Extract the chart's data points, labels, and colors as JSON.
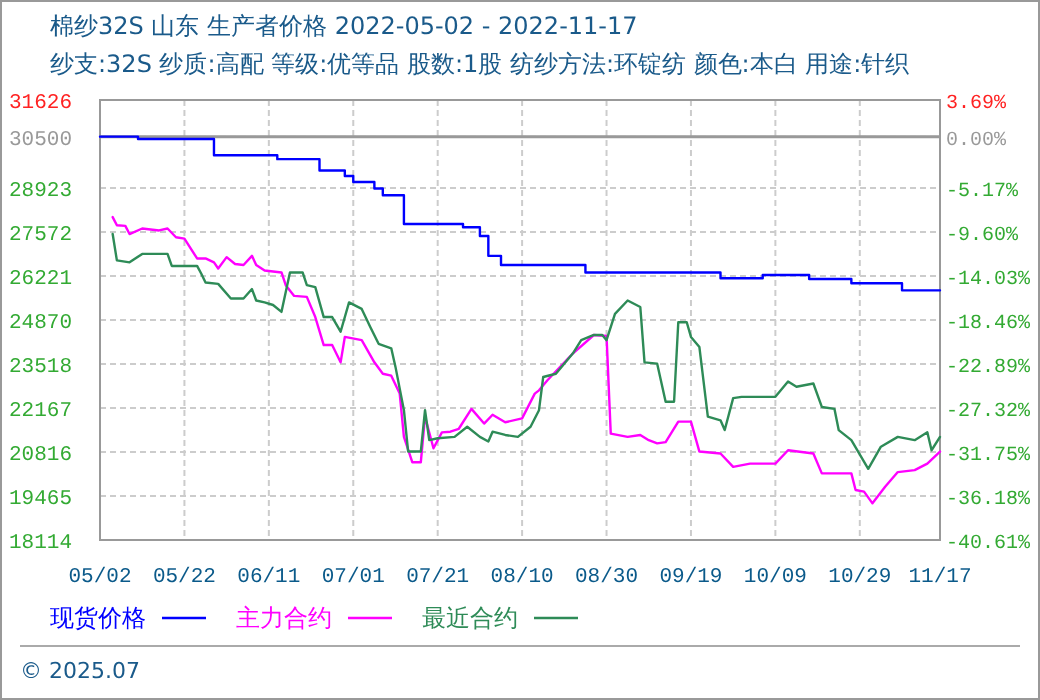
{
  "chart_data": {
    "type": "line",
    "title": "棉纱32S 山东 生产者价格 2022-05-02 - 2022-11-17",
    "subtitle": "纱支:32S 纱质:高配 等级:优等品 股数:1股 纺纱方法:环锭纺 颜色:本白 用途:针织",
    "xlim": [
      "2022-05-02",
      "2022-11-17"
    ],
    "xticks": [
      {
        "value": "2022-05-02",
        "label": "05/02"
      },
      {
        "value": "2022-05-22",
        "label": "05/22"
      },
      {
        "value": "2022-06-11",
        "label": "06/11"
      },
      {
        "value": "2022-07-01",
        "label": "07/01"
      },
      {
        "value": "2022-07-21",
        "label": "07/21"
      },
      {
        "value": "2022-08-10",
        "label": "08/10"
      },
      {
        "value": "2022-08-30",
        "label": "08/30"
      },
      {
        "value": "2022-09-19",
        "label": "09/19"
      },
      {
        "value": "2022-10-09",
        "label": "10/09"
      },
      {
        "value": "2022-10-29",
        "label": "10/29"
      },
      {
        "value": "2022-11-17",
        "label": "11/17"
      }
    ],
    "ylim": [
      18114,
      31626
    ],
    "yticks": [
      18114,
      19465,
      20816,
      22167,
      23518,
      24870,
      26221,
      27572,
      28923,
      30500,
      31626
    ],
    "y2lim": [
      -40.61,
      3.69
    ],
    "y2ticks": [
      {
        "value": -40.61,
        "label": "-40.61%"
      },
      {
        "value": -36.18,
        "label": "-36.18%"
      },
      {
        "value": -31.75,
        "label": "-31.75%"
      },
      {
        "value": -27.32,
        "label": "-27.32%"
      },
      {
        "value": -22.89,
        "label": "-22.89%"
      },
      {
        "value": -18.46,
        "label": "-18.46%"
      },
      {
        "value": -14.03,
        "label": "-14.03%"
      },
      {
        "value": -9.6,
        "label": "-9.60%"
      },
      {
        "value": -5.17,
        "label": "-5.17%"
      },
      {
        "value": 0,
        "label": "0.00%"
      },
      {
        "value": 3.69,
        "label": "3.69%"
      }
    ],
    "grid": true,
    "legend": "bottom",
    "ref_lines": [
      {
        "axis": "y",
        "value": 30500,
        "color": "#999999"
      }
    ],
    "annotations": [
      "© 2025.07"
    ],
    "series": [
      {
        "name": "现货价格",
        "type": "step",
        "color": "#0000ff",
        "x": [
          "2022-05-02",
          "2022-05-11",
          "2022-05-29",
          "2022-06-13",
          "2022-06-23",
          "2022-06-29",
          "2022-07-01",
          "2022-07-06",
          "2022-07-08",
          "2022-07-13",
          "2022-07-27",
          "2022-07-31",
          "2022-08-02",
          "2022-08-05",
          "2022-08-25",
          "2022-09-26",
          "2022-10-06",
          "2022-10-17",
          "2022-10-27",
          "2022-11-08",
          "2022-11-17"
        ],
        "values": [
          30500,
          30430,
          29930,
          29810,
          29460,
          29290,
          29110,
          28910,
          28700,
          27820,
          27720,
          27450,
          26840,
          26560,
          26330,
          26150,
          26250,
          26130,
          26000,
          25780,
          25780
        ]
      },
      {
        "name": "主力合约",
        "color": "#ff00ff",
        "x": [
          "2022-05-05",
          "2022-05-06",
          "2022-05-08",
          "2022-05-09",
          "2022-05-12",
          "2022-05-16",
          "2022-05-18",
          "2022-05-20",
          "2022-05-22",
          "2022-05-25",
          "2022-05-27",
          "2022-05-29",
          "2022-05-30",
          "2022-06-01",
          "2022-06-03",
          "2022-06-05",
          "2022-06-07",
          "2022-06-08",
          "2022-06-10",
          "2022-06-14",
          "2022-06-15",
          "2022-06-17",
          "2022-06-20",
          "2022-06-22",
          "2022-06-24",
          "2022-06-26",
          "2022-06-28",
          "2022-06-29",
          "2022-07-03",
          "2022-07-06",
          "2022-07-08",
          "2022-07-10",
          "2022-07-12",
          "2022-07-13",
          "2022-07-15",
          "2022-07-17",
          "2022-07-18",
          "2022-07-20",
          "2022-07-22",
          "2022-07-24",
          "2022-07-26",
          "2022-07-29",
          "2022-08-01",
          "2022-08-03",
          "2022-08-06",
          "2022-08-10",
          "2022-08-13",
          "2022-08-14",
          "2022-08-16",
          "2022-08-22",
          "2022-08-27",
          "2022-08-30",
          "2022-08-31",
          "2022-09-04",
          "2022-09-07",
          "2022-09-09",
          "2022-09-11",
          "2022-09-13",
          "2022-09-16",
          "2022-09-19",
          "2022-09-21",
          "2022-09-26",
          "2022-09-29",
          "2022-10-03",
          "2022-10-09",
          "2022-10-12",
          "2022-10-18",
          "2022-10-20",
          "2022-10-27",
          "2022-10-28",
          "2022-10-30",
          "2022-11-01",
          "2022-11-04",
          "2022-11-07",
          "2022-11-11",
          "2022-11-14",
          "2022-11-17"
        ],
        "values": [
          28030,
          27780,
          27760,
          27510,
          27680,
          27620,
          27680,
          27410,
          27370,
          26760,
          26760,
          26640,
          26450,
          26800,
          26590,
          26560,
          26840,
          26560,
          26390,
          26330,
          25940,
          25610,
          25580,
          24960,
          24100,
          24100,
          23570,
          24350,
          24250,
          23570,
          23220,
          23160,
          22610,
          21280,
          20500,
          20500,
          21900,
          20930,
          21420,
          21440,
          21530,
          22140,
          21690,
          21960,
          21730,
          21850,
          22610,
          22710,
          23020,
          23840,
          24410,
          24380,
          21380,
          21280,
          21340,
          21180,
          21080,
          21120,
          21750,
          21750,
          20830,
          20770,
          20360,
          20460,
          20460,
          20870,
          20770,
          20160,
          20160,
          19650,
          19600,
          19240,
          19750,
          20200,
          20260,
          20460,
          20830
        ]
      },
      {
        "name": "最近合约",
        "color": "#2e8b57",
        "x": [
          "2022-05-05",
          "2022-05-06",
          "2022-05-09",
          "2022-05-12",
          "2022-05-18",
          "2022-05-19",
          "2022-05-25",
          "2022-05-26",
          "2022-05-27",
          "2022-05-30",
          "2022-06-02",
          "2022-06-05",
          "2022-06-07",
          "2022-06-08",
          "2022-06-10",
          "2022-06-12",
          "2022-06-14",
          "2022-06-16",
          "2022-06-19",
          "2022-06-20",
          "2022-06-22",
          "2022-06-24",
          "2022-06-26",
          "2022-06-28",
          "2022-06-30",
          "2022-07-03",
          "2022-07-05",
          "2022-07-07",
          "2022-07-10",
          "2022-07-11",
          "2022-07-13",
          "2022-07-14",
          "2022-07-17",
          "2022-07-18",
          "2022-07-19",
          "2022-07-21",
          "2022-07-25",
          "2022-07-28",
          "2022-07-31",
          "2022-08-02",
          "2022-08-03",
          "2022-08-06",
          "2022-08-09",
          "2022-08-12",
          "2022-08-14",
          "2022-08-15",
          "2022-08-18",
          "2022-08-22",
          "2022-08-24",
          "2022-08-27",
          "2022-08-29",
          "2022-08-30",
          "2022-09-01",
          "2022-09-04",
          "2022-09-07",
          "2022-09-08",
          "2022-09-11",
          "2022-09-13",
          "2022-09-15",
          "2022-09-16",
          "2022-09-18",
          "2022-09-19",
          "2022-09-21",
          "2022-09-23",
          "2022-09-26",
          "2022-09-27",
          "2022-09-29",
          "2022-10-01",
          "2022-10-09",
          "2022-10-12",
          "2022-10-14",
          "2022-10-18",
          "2022-10-20",
          "2022-10-23",
          "2022-10-24",
          "2022-10-27",
          "2022-10-31",
          "2022-11-03",
          "2022-11-07",
          "2022-11-11",
          "2022-11-14",
          "2022-11-15",
          "2022-11-17"
        ],
        "values": [
          27510,
          26700,
          26640,
          26900,
          26900,
          26530,
          26530,
          26290,
          26020,
          25980,
          25530,
          25530,
          25820,
          25470,
          25410,
          25330,
          25120,
          26330,
          26330,
          25940,
          25880,
          24960,
          24960,
          24510,
          25410,
          25210,
          24660,
          24140,
          24000,
          23430,
          22100,
          20830,
          20830,
          22100,
          21180,
          21240,
          21280,
          21590,
          21280,
          21140,
          21440,
          21340,
          21280,
          21590,
          22100,
          23120,
          23220,
          23840,
          24250,
          24410,
          24410,
          24250,
          25060,
          25470,
          25270,
          23570,
          23530,
          22360,
          22360,
          24800,
          24800,
          24350,
          24040,
          21900,
          21790,
          21490,
          22470,
          22510,
          22510,
          22980,
          22820,
          22920,
          22200,
          22140,
          21490,
          21180,
          20300,
          20980,
          21280,
          21180,
          21420,
          20870,
          21280
        ]
      }
    ]
  }
}
